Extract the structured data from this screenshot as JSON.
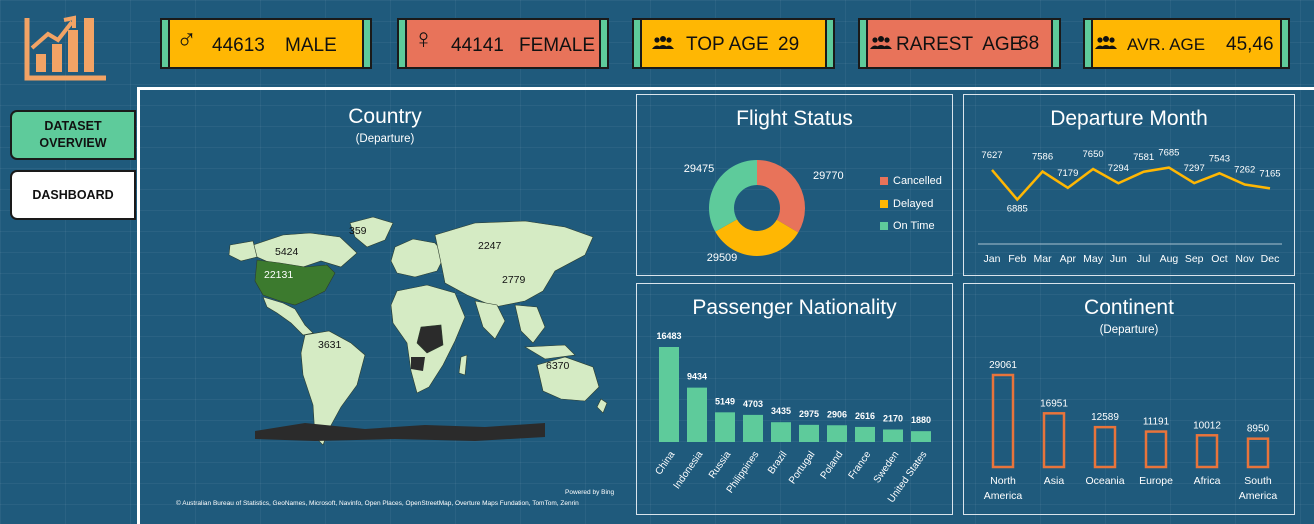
{
  "kpis": {
    "male": {
      "value": "44613",
      "label": "MALE",
      "icon": "male-symbol-icon"
    },
    "female": {
      "value": "44141",
      "label": "FEMALE",
      "icon": "female-symbol-icon"
    },
    "top_age": {
      "label": "TOP AGE",
      "value": "29",
      "icon": "people-icon"
    },
    "rarest_age": {
      "label": "RAREST  AGE",
      "value": "68",
      "icon": "people-icon"
    },
    "avg_age": {
      "label": "AVR. AGE",
      "value": "45,46",
      "icon": "people-icon"
    }
  },
  "nav": {
    "dataset_overview": "DATASET OVERVIEW",
    "dashboard": "DASHBOARD"
  },
  "country": {
    "title": "Country",
    "subtitle": "(Departure)",
    "labels": [
      "359",
      "5424",
      "22131",
      "2247",
      "2779",
      "3631",
      "6370"
    ],
    "powered_by": "Powered by Bing",
    "attribution": "© Australian Bureau of Statistics, GeoNames, Microsoft, Navinfo, Open Places, OpenStreetMap, Overture Maps Fundation, TomTom, Zenrin"
  },
  "flight_status": {
    "title": "Flight Status",
    "legend": [
      "Cancelled",
      "Delayed",
      "On Time"
    ]
  },
  "departure_month": {
    "title": "Departure Month"
  },
  "passenger_nationality": {
    "title": "Passenger Nationality"
  },
  "continent": {
    "title": "Continent",
    "subtitle": "(Departure)"
  },
  "colors": {
    "background": "#1f5a7c",
    "yellow": "#ffb703",
    "salmon": "#e8735a",
    "green": "#5ecb9b",
    "orange": "#e8743b"
  },
  "chart_data": [
    {
      "type": "pie",
      "title": "Flight Status",
      "categories": [
        "Cancelled",
        "Delayed",
        "On Time"
      ],
      "values": [
        29770,
        29509,
        29475
      ],
      "colors": [
        "#e8735a",
        "#ffb703",
        "#5ecb9b"
      ],
      "legend": "right"
    },
    {
      "type": "line",
      "title": "Departure Month",
      "categories": [
        "Jan",
        "Feb",
        "Mar",
        "Apr",
        "May",
        "Jun",
        "Jul",
        "Aug",
        "Sep",
        "Oct",
        "Nov",
        "Dec"
      ],
      "values": [
        7627,
        6885,
        7586,
        7179,
        7650,
        7294,
        7581,
        7685,
        7297,
        7543,
        7262,
        7165
      ],
      "color": "#ffb703"
    },
    {
      "type": "bar",
      "title": "Passenger Nationality",
      "categories": [
        "China",
        "Indonesia",
        "Russia",
        "Philippines",
        "Brazil",
        "Portugal",
        "Poland",
        "France",
        "Sweden",
        "United States"
      ],
      "values": [
        16483,
        9434,
        5149,
        4703,
        3435,
        2975,
        2906,
        2616,
        2170,
        1880
      ],
      "color": "#5ecb9b"
    },
    {
      "type": "bar",
      "title": "Continent",
      "subtitle": "(Departure)",
      "categories": [
        "North America",
        "Asia",
        "Oceania",
        "Europe",
        "Africa",
        "South America"
      ],
      "values": [
        29061,
        16951,
        12589,
        11191,
        10012,
        8950
      ],
      "color": "#e8743b"
    }
  ]
}
